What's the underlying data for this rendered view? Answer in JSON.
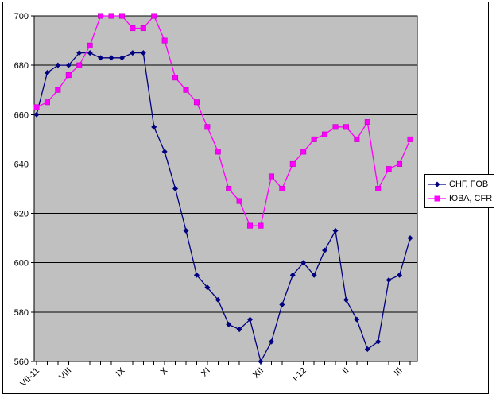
{
  "window": {
    "background": "#ffffff",
    "frame_border_color": "#000000"
  },
  "chart_data": {
    "type": "line",
    "title": "",
    "xlabel": "",
    "ylabel": "",
    "plot_bg": "#c0c0c0",
    "grid": true,
    "gridline_color": "#000000",
    "axis_color": "#000000",
    "ylim": [
      560,
      700
    ],
    "yticks": [
      560,
      580,
      600,
      620,
      640,
      660,
      680,
      700
    ],
    "legend_position": "right",
    "categories": [
      "VII-11",
      "",
      "",
      "VIII",
      "",
      "",
      "",
      "",
      "IX",
      "",
      "",
      "",
      "X",
      "",
      "",
      "",
      "XI",
      "",
      "",
      "",
      "",
      "XII",
      "",
      "",
      "",
      "I-12",
      "",
      "",
      "",
      "II",
      "",
      "",
      "",
      "",
      "III",
      ""
    ],
    "series": [
      {
        "name": "СНГ, FOB",
        "color": "#000080",
        "marker": "diamond",
        "values": [
          660,
          677,
          680,
          680,
          685,
          685,
          683,
          683,
          683,
          685,
          685,
          655,
          645,
          630,
          613,
          595,
          590,
          585,
          575,
          573,
          577,
          560,
          568,
          583,
          595,
          600,
          595,
          605,
          613,
          585,
          577,
          565,
          568,
          593,
          595,
          610
        ]
      },
      {
        "name": "ЮВА, CFR",
        "color": "#ff00ff",
        "marker": "square",
        "values": [
          663,
          665,
          670,
          676,
          680,
          688,
          700,
          700,
          700,
          695,
          695,
          700,
          690,
          675,
          670,
          665,
          655,
          645,
          630,
          625,
          615,
          615,
          635,
          630,
          640,
          645,
          650,
          652,
          655,
          655,
          650,
          657,
          630,
          638,
          640,
          650
        ]
      }
    ]
  }
}
